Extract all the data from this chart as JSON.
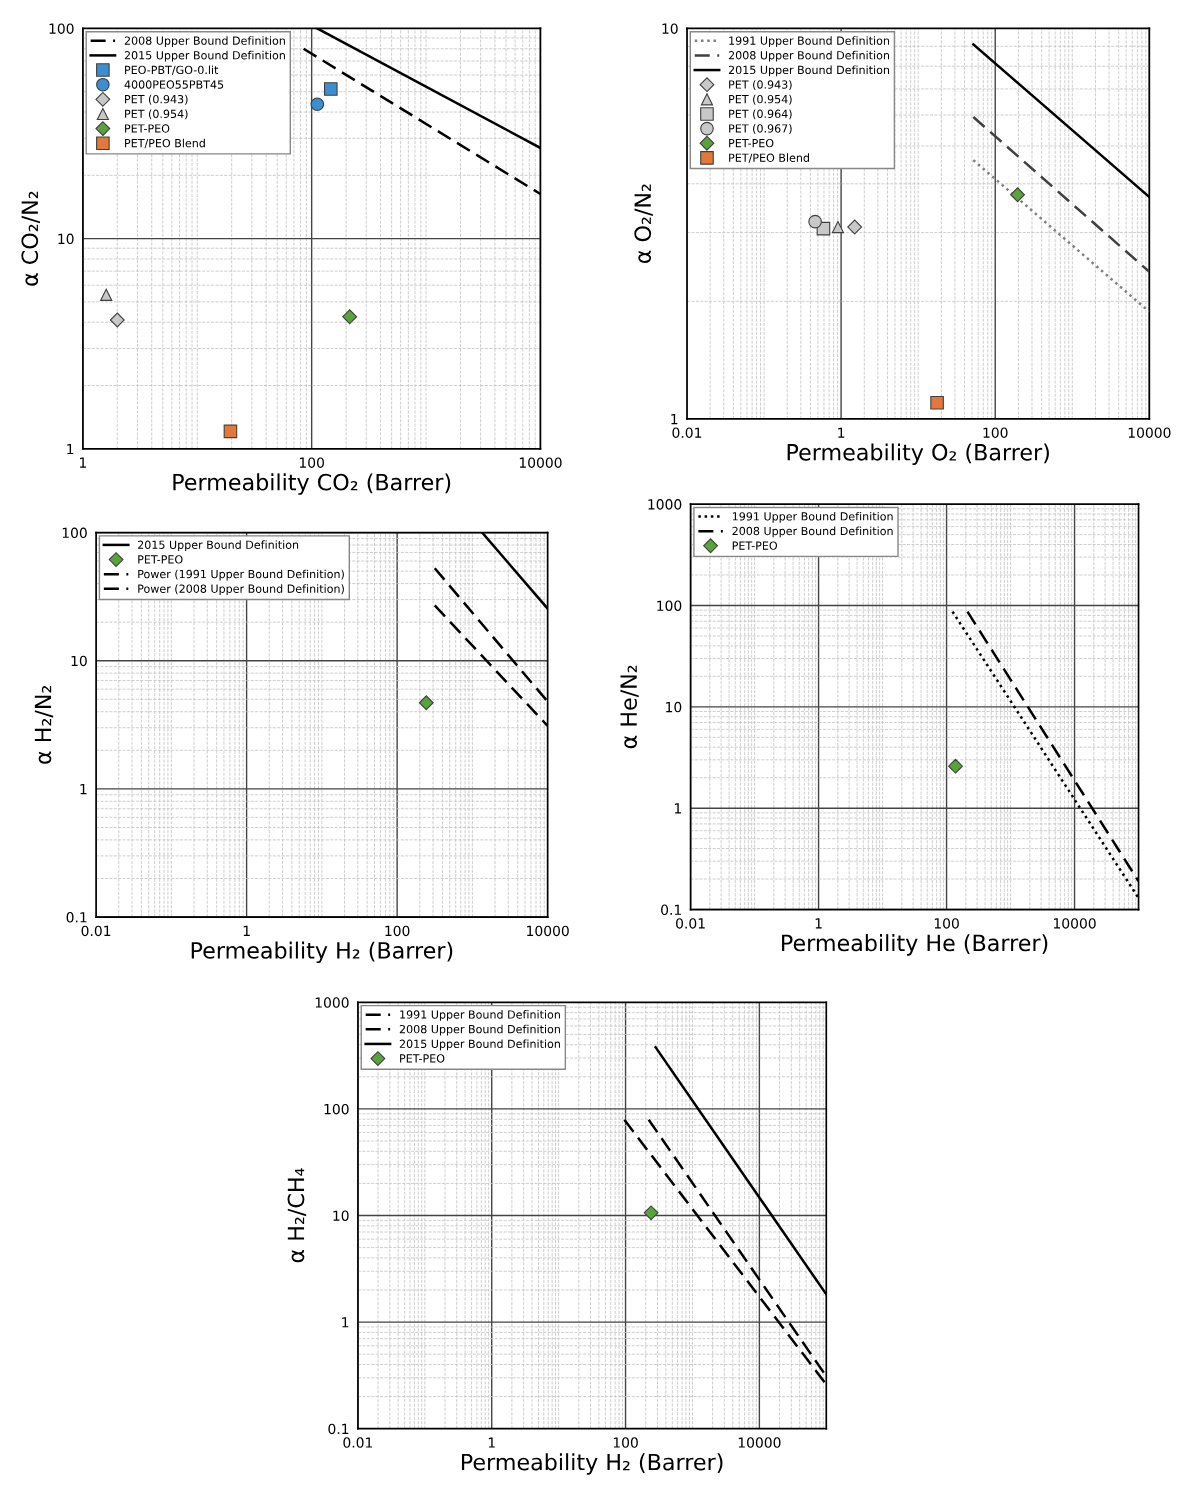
{
  "chart_data": [
    {
      "type": "scatter",
      "xlabel": "Permeability CO₂ (Barrer)",
      "ylabel": "α CO₂/N₂",
      "log": "xy",
      "xlim": [
        1,
        10000
      ],
      "ylim": [
        1,
        100
      ],
      "xticks": [
        1,
        100,
        10000
      ],
      "yticks": [
        1,
        10,
        100
      ],
      "grid": true,
      "legend": "top left",
      "series": [
        {
          "name": "2008 Upper Bound Definition",
          "type": "line",
          "line_style": "dashed",
          "marker": "none",
          "color": "#000000",
          "x": [
            85,
            10000
          ],
          "values": [
            80,
            16.3
          ]
        },
        {
          "name": "2015 Upper Bound Definition",
          "type": "line",
          "line_style": "solid",
          "marker": "none",
          "color": "#000000",
          "x": [
            112,
            10000
          ],
          "values": [
            100,
            27
          ]
        },
        {
          "name": "PEO-PBT/GO-0.lit",
          "marker": "square",
          "color": "#3b8fd0",
          "x": [
            147
          ],
          "values": [
            51.5
          ]
        },
        {
          "name": "4000PEO55PBT45",
          "marker": "circle",
          "color": "#3b8fd0",
          "x": [
            112
          ],
          "values": [
            43.6
          ]
        },
        {
          "name": "PET (0.943)",
          "marker": "diamond",
          "color": "#c8c8c8",
          "x": [
            2.0
          ],
          "values": [
            4.1
          ]
        },
        {
          "name": "PET (0.954)",
          "marker": "triangle",
          "color": "#c8c8c8",
          "x": [
            1.6
          ],
          "values": [
            5.4
          ]
        },
        {
          "name": "PET-PEO",
          "marker": "diamond",
          "color": "#5aa33c",
          "x": [
            215
          ],
          "values": [
            4.25
          ]
        },
        {
          "name": "PET/PEO Blend",
          "marker": "square",
          "color": "#e4773a",
          "x": [
            19.5
          ],
          "values": [
            1.21
          ]
        }
      ]
    },
    {
      "type": "scatter",
      "xlabel": "Permeability O₂ (Barrer)",
      "ylabel": "α O₂/N₂",
      "log": "xy",
      "xlim": [
        0.01,
        10000
      ],
      "ylim": [
        1,
        10
      ],
      "xticks": [
        0.01,
        1,
        100,
        10000
      ],
      "yticks": [
        1,
        10
      ],
      "grid": true,
      "legend": "top left",
      "series": [
        {
          "name": "1991 Upper Bound Definition",
          "type": "line",
          "line_style": "dotted",
          "marker": "none",
          "color": "#808080",
          "x": [
            52,
            10000
          ],
          "values": [
            4.6,
            1.88
          ]
        },
        {
          "name": "2008 Upper Bound Definition",
          "type": "line",
          "line_style": "dashed",
          "marker": "none",
          "color": "#404040",
          "x": [
            52,
            10000
          ],
          "values": [
            5.93,
            2.38
          ]
        },
        {
          "name": "2015 Upper Bound Definition",
          "type": "line",
          "line_style": "solid",
          "marker": "none",
          "color": "#000000",
          "x": [
            52,
            10000
          ],
          "values": [
            9.1,
            3.7
          ]
        },
        {
          "name": "PET (0.943)",
          "marker": "diamond",
          "color": "#c8c8c8",
          "x": [
            1.5
          ],
          "values": [
            3.1
          ]
        },
        {
          "name": "PET (0.954)",
          "marker": "triangle",
          "color": "#c8c8c8",
          "x": [
            0.91
          ],
          "values": [
            3.1
          ]
        },
        {
          "name": "PET (0.964)",
          "marker": "square",
          "color": "#c8c8c8",
          "x": [
            0.59
          ],
          "values": [
            3.07
          ]
        },
        {
          "name": "PET (0.967)",
          "marker": "circle",
          "color": "#c8c8c8",
          "x": [
            0.46
          ],
          "values": [
            3.2
          ]
        },
        {
          "name": "PET-PEO",
          "marker": "diamond",
          "color": "#5aa33c",
          "x": [
            195
          ],
          "values": [
            3.75
          ]
        },
        {
          "name": "PET/PEO Blend",
          "marker": "square",
          "color": "#e4773a",
          "x": [
            17.6
          ],
          "values": [
            1.1
          ]
        }
      ]
    },
    {
      "type": "scatter",
      "xlabel": "Permeability H₂ (Barrer)",
      "ylabel": "α H₂/N₂",
      "log": "xy",
      "xlim": [
        0.01,
        10000
      ],
      "ylim": [
        0.1,
        100
      ],
      "xticks": [
        0.01,
        1,
        100,
        10000
      ],
      "yticks": [
        0.1,
        1,
        10,
        100
      ],
      "grid": true,
      "legend": "top left",
      "series": [
        {
          "name": "2015 Upper Bound Definition",
          "type": "line",
          "line_style": "solid",
          "marker": "none",
          "color": "#000000",
          "x": [
            1350,
            10000
          ],
          "values": [
            100,
            25.5
          ]
        },
        {
          "name": "PET-PEO",
          "marker": "diamond",
          "color": "#5aa33c",
          "x": [
            244
          ],
          "values": [
            4.7
          ]
        },
        {
          "name": "Power (1991 Upper Bound Definition)",
          "type": "line",
          "line_style": "dashed",
          "marker": "none",
          "color": "#000000",
          "x": [
            316,
            10000
          ],
          "values": [
            27,
            3.1
          ]
        },
        {
          "name": "Power (2008 Upper Bound Definition)",
          "type": "line",
          "line_style": "dashed",
          "marker": "none",
          "color": "#000000",
          "x": [
            316,
            10000
          ],
          "values": [
            52.7,
            4.8
          ]
        }
      ]
    },
    {
      "type": "scatter",
      "xlabel": "Permeability He (Barrer)",
      "ylabel": "α He/N₂",
      "log": "xy",
      "xlim": [
        0.01,
        100000
      ],
      "ylim": [
        0.1,
        1000
      ],
      "xticks": [
        0.01,
        1,
        100,
        10000
      ],
      "yticks": [
        0.1,
        1,
        10,
        100,
        1000
      ],
      "grid": true,
      "legend": "top left",
      "series": [
        {
          "name": "1991 Upper Bound Definition",
          "type": "line",
          "line_style": "dotted",
          "marker": "none",
          "color": "#000000",
          "x": [
            124,
            100000
          ],
          "values": [
            87,
            0.13
          ]
        },
        {
          "name": "2008 Upper Bound Definition",
          "type": "line",
          "line_style": "dashed",
          "marker": "none",
          "color": "#000000",
          "x": [
            212,
            100000
          ],
          "values": [
            87,
            0.19
          ]
        },
        {
          "name": "PET-PEO",
          "marker": "diamond",
          "color": "#5aa33c",
          "x": [
            138
          ],
          "values": [
            2.6
          ]
        }
      ]
    },
    {
      "type": "scatter",
      "xlabel": "Permeability H₂ (Barrer)",
      "ylabel": "α H₂/CH₄",
      "log": "xy",
      "xlim": [
        0.01,
        100000
      ],
      "ylim": [
        0.1,
        1000
      ],
      "xticks": [
        0.01,
        1,
        100,
        10000
      ],
      "yticks": [
        0.1,
        1,
        10,
        100,
        1000
      ],
      "grid": true,
      "legend": "top left",
      "series": [
        {
          "name": "1991 Upper Bound Definition",
          "type": "line",
          "line_style": "dashed",
          "marker": "none",
          "color": "#000000",
          "x": [
            96,
            100000
          ],
          "values": [
            79,
            0.26
          ]
        },
        {
          "name": "2008 Upper Bound Definition",
          "type": "line",
          "line_style": "dashed",
          "marker": "none",
          "color": "#000000",
          "x": [
            222,
            100000
          ],
          "values": [
            79,
            0.31
          ]
        },
        {
          "name": "2015 Upper Bound Definition",
          "type": "line",
          "line_style": "solid",
          "marker": "none",
          "color": "#000000",
          "x": [
            282,
            100000
          ],
          "values": [
            378,
            1.82
          ]
        },
        {
          "name": "PET-PEO",
          "marker": "diamond",
          "color": "#5aa33c",
          "x": [
            241
          ],
          "values": [
            10.6
          ]
        }
      ]
    }
  ]
}
